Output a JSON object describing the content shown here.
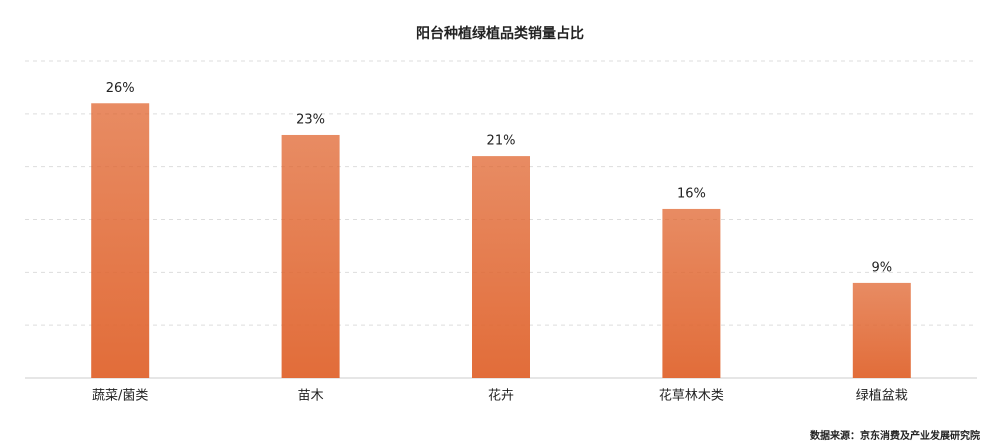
{
  "chart_data": {
    "type": "bar",
    "title": "阳台种植绿植品类销量占比",
    "categories": [
      "蔬菜/菌类",
      "苗木",
      "花卉",
      "花草林木类",
      "绿植盆栽"
    ],
    "values": [
      26,
      23,
      21,
      16,
      9
    ],
    "value_labels": [
      "26%",
      "23%",
      "21%",
      "16%",
      "9%"
    ],
    "color": "#e0652f",
    "ylim": [
      0,
      30
    ],
    "yticks": [
      0,
      5,
      10,
      15,
      20,
      25,
      30
    ],
    "grid": true,
    "source": "数据来源：京东消费及产业发展研究院"
  }
}
